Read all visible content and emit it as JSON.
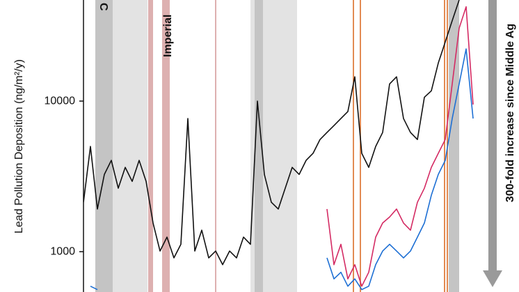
{
  "chart_data": {
    "type": "line",
    "y_label": "Lead Pollution Deposition (ng/m²/y)",
    "annotations": [
      "C",
      "Imperial",
      "300-fold increase since Middle Ag"
    ],
    "log_scale": true,
    "ylim": [
      540,
      46900
    ],
    "yticks": [
      1000,
      10000
    ],
    "series": [
      {
        "name": "Lead (black)",
        "color": "#111111",
        "values": [
          2130,
          5000,
          1920,
          3260,
          4040,
          2640,
          3630,
          2930,
          4040,
          2930,
          1550,
          1010,
          1250,
          910,
          1120,
          7660,
          1010,
          1390,
          910,
          1010,
          820,
          1010,
          910,
          1250,
          1120,
          10000,
          3260,
          2130,
          1920,
          2640,
          3630,
          3260,
          4040,
          4500,
          5560,
          6190,
          6880,
          7660,
          8520,
          14500,
          4500,
          3630,
          5000,
          6190,
          13000,
          14500,
          7660,
          6190,
          5560,
          10600,
          11700,
          17900,
          24700,
          34200,
          46900,
          null,
          null
        ]
      },
      {
        "name": "Lead (red)",
        "color": "#d42a63",
        "values": [
          null,
          null,
          null,
          null,
          null,
          null,
          null,
          null,
          null,
          null,
          null,
          null,
          null,
          null,
          null,
          null,
          null,
          null,
          null,
          null,
          null,
          null,
          null,
          null,
          null,
          null,
          null,
          null,
          null,
          null,
          null,
          null,
          null,
          null,
          null,
          1920,
          820,
          1120,
          660,
          820,
          590,
          730,
          1250,
          1550,
          1700,
          1920,
          1550,
          1390,
          2130,
          2640,
          3630,
          4500,
          5560,
          13000,
          30500,
          42300,
          9480
        ]
      },
      {
        "name": "Lead (blue)",
        "color": "#1d6fd4",
        "values": [
          null,
          590,
          560,
          null,
          null,
          null,
          null,
          null,
          null,
          null,
          null,
          null,
          null,
          null,
          null,
          null,
          null,
          null,
          null,
          null,
          null,
          null,
          null,
          null,
          null,
          700,
          null,
          null,
          null,
          null,
          null,
          null,
          null,
          null,
          null,
          910,
          660,
          730,
          590,
          660,
          560,
          590,
          820,
          1010,
          1120,
          1010,
          910,
          1010,
          1250,
          1550,
          2370,
          3260,
          4040,
          7660,
          13000,
          22200,
          7660
        ]
      }
    ]
  }
}
